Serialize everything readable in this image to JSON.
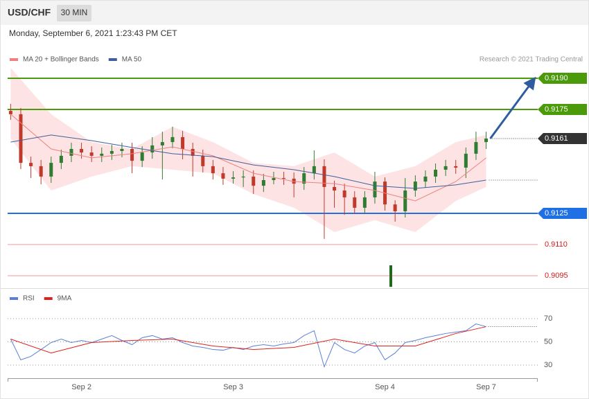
{
  "header": {
    "symbol": "USD/CHF",
    "timeframe": "30 MIN",
    "timestamp": "Monday, September 6, 2021 1:23:43 PM CET"
  },
  "chart_data": [
    {
      "type": "candlestick",
      "credit": "Research © 2021 Trading Central",
      "xlim": [
        -0.3,
        52.1
      ],
      "ylim": [
        0.9089,
        0.9195
      ],
      "up_color": "#2f7d32",
      "down_color": "#c0392b",
      "open": [
        0.91743,
        0.91727,
        0.91493,
        0.91477,
        0.91427,
        0.91493,
        0.91527,
        0.9156,
        0.91543,
        0.91527,
        0.91537,
        0.9155,
        0.9156,
        0.91503,
        0.91543,
        0.91577,
        0.91593,
        0.91617,
        0.9156,
        0.91527,
        0.91477,
        0.91443,
        0.91417,
        0.91423,
        0.91427,
        0.91383,
        0.9141,
        0.9142,
        0.91417,
        0.91393,
        0.91443,
        0.91477,
        0.91377,
        0.9136,
        0.91327,
        0.91277,
        0.91327,
        0.91403,
        0.91293,
        0.9126,
        0.9136,
        0.91403,
        0.91427,
        0.9146,
        0.91477,
        0.9147,
        0.91537,
        0.91593
      ],
      "high": [
        0.91777,
        0.91757,
        0.91523,
        0.91507,
        0.91523,
        0.91557,
        0.9159,
        0.9159,
        0.91573,
        0.91567,
        0.9158,
        0.9159,
        0.9159,
        0.91573,
        0.91617,
        0.91643,
        0.91667,
        0.91647,
        0.9159,
        0.91557,
        0.91507,
        0.91473,
        0.91453,
        0.91457,
        0.91457,
        0.9144,
        0.9145,
        0.9145,
        0.91447,
        0.91473,
        0.91553,
        0.9151,
        0.91407,
        0.91393,
        0.91357,
        0.91357,
        0.9145,
        0.91423,
        0.91313,
        0.9142,
        0.91433,
        0.91457,
        0.9149,
        0.91507,
        0.91507,
        0.91567,
        0.91643,
        0.91643
      ],
      "low": [
        0.917,
        0.91463,
        0.9142,
        0.9139,
        0.91397,
        0.91463,
        0.91497,
        0.91513,
        0.91497,
        0.91497,
        0.91507,
        0.9152,
        0.91443,
        0.91473,
        0.91513,
        0.91413,
        0.91563,
        0.9151,
        0.91427,
        0.91447,
        0.91413,
        0.91387,
        0.91393,
        0.91377,
        0.91343,
        0.91353,
        0.9139,
        0.91387,
        0.91327,
        0.91363,
        0.91413,
        0.91127,
        0.91277,
        0.91243,
        0.91247,
        0.91247,
        0.91297,
        0.91263,
        0.9121,
        0.9123,
        0.9133,
        0.91373,
        0.91397,
        0.9143,
        0.9144,
        0.9142,
        0.91507,
        0.9156
      ],
      "close": [
        0.91727,
        0.91493,
        0.91477,
        0.91427,
        0.91493,
        0.91527,
        0.9156,
        0.91543,
        0.91527,
        0.91537,
        0.9155,
        0.9156,
        0.91503,
        0.91543,
        0.91577,
        0.91593,
        0.91617,
        0.9156,
        0.91527,
        0.91477,
        0.91443,
        0.91417,
        0.91423,
        0.91427,
        0.91383,
        0.9141,
        0.9142,
        0.91417,
        0.91393,
        0.91443,
        0.91477,
        0.91377,
        0.9136,
        0.91327,
        0.91277,
        0.91327,
        0.91403,
        0.91293,
        0.9126,
        0.9136,
        0.91403,
        0.91427,
        0.9146,
        0.91477,
        0.9147,
        0.91537,
        0.91593,
        0.9161
      ],
      "series": [
        {
          "name": "MA 20 + Bollinger Bands",
          "color": "#f08080",
          "band_color": "#fde3e3",
          "x": [
            0,
            4,
            8,
            12,
            16,
            20,
            24,
            28,
            32,
            36,
            40,
            44,
            47
          ],
          "values": [
            0.91727,
            0.9156,
            0.91517,
            0.91537,
            0.9157,
            0.91527,
            0.91443,
            0.91403,
            0.91393,
            0.9136,
            0.9131,
            0.91403,
            0.91517
          ],
          "upper": [
            0.9195,
            0.91727,
            0.91593,
            0.9156,
            0.91667,
            0.91593,
            0.91493,
            0.91477,
            0.91543,
            0.91427,
            0.91477,
            0.91593,
            0.91627
          ],
          "lower": [
            0.9161,
            0.9136,
            0.91427,
            0.91477,
            0.9146,
            0.91443,
            0.91343,
            0.91277,
            0.9116,
            0.91217,
            0.9116,
            0.9131,
            0.91377
          ]
        },
        {
          "name": "MA 50",
          "color": "#3d5f9e",
          "x": [
            0,
            4,
            8,
            12,
            16,
            20,
            24,
            28,
            32,
            36,
            40,
            44,
            47
          ],
          "values": [
            0.91593,
            0.91627,
            0.916,
            0.91567,
            0.91537,
            0.91523,
            0.91483,
            0.9146,
            0.91427,
            0.91383,
            0.9137,
            0.91387,
            0.9141
          ]
        }
      ],
      "levels": [
        {
          "value": 0.919,
          "label": "0.9190",
          "color": "#4a9a0a",
          "style": "tag"
        },
        {
          "value": 0.9175,
          "label": "0.9175",
          "color": "#4a9a0a",
          "style": "tag"
        },
        {
          "value": 0.9161,
          "label": "0.9161",
          "color": "#333333",
          "style": "tag-dotted"
        },
        {
          "value": 0.9125,
          "label": "0.9125",
          "color": "#1f6fe5",
          "style": "tag"
        },
        {
          "value": 0.911,
          "label": "0.9110",
          "color": "#d41a1a",
          "style": "text"
        },
        {
          "value": 0.9095,
          "label": "0.9095",
          "color": "#d41a1a",
          "style": "text"
        }
      ]
    },
    {
      "type": "line",
      "xlim": [
        -0.3,
        52.1
      ],
      "ylim": [
        20,
        90
      ],
      "yticks": [
        30,
        50,
        70
      ],
      "grid": true,
      "categories": [
        null,
        null,
        null,
        null,
        null,
        null,
        null,
        "Sep 2",
        null,
        null,
        null,
        null,
        null,
        null,
        null,
        null,
        null,
        null,
        null,
        null,
        null,
        null,
        "Sep 3",
        null,
        null,
        null,
        null,
        null,
        null,
        null,
        null,
        null,
        null,
        null,
        null,
        null,
        null,
        "Sep 4",
        null,
        null,
        null,
        null,
        null,
        null,
        null,
        null,
        null,
        "Sep 7"
      ],
      "series": [
        {
          "name": "RSI",
          "color": "#5b7fd6",
          "values": [
            52.4,
            34.5,
            37.5,
            43.4,
            49.4,
            52.4,
            49.4,
            51.2,
            49.4,
            52.4,
            55.4,
            51.2,
            47.6,
            53.6,
            55.4,
            52.4,
            53.6,
            49.4,
            46.4,
            45.2,
            43.4,
            42.8,
            45.2,
            43.4,
            46.4,
            47.6,
            46.4,
            48.2,
            49.4,
            55.4,
            59.6,
            28.5,
            49.4,
            43.4,
            40.4,
            46.4,
            49.4,
            34.5,
            40.4,
            49.4,
            51.2,
            53.6,
            55.4,
            57.2,
            58.4,
            59.6,
            65.5,
            63.1
          ]
        },
        {
          "name": "9MA",
          "color": "#e0201b",
          "x": [
            0,
            4,
            8,
            12,
            16,
            20,
            24,
            28,
            32,
            36,
            40,
            44,
            47
          ],
          "values": [
            52.4,
            40.4,
            49.4,
            51.2,
            52.4,
            46.4,
            43.4,
            45.2,
            52.4,
            46.4,
            46.4,
            57.2,
            63.1
          ]
        }
      ]
    }
  ]
}
